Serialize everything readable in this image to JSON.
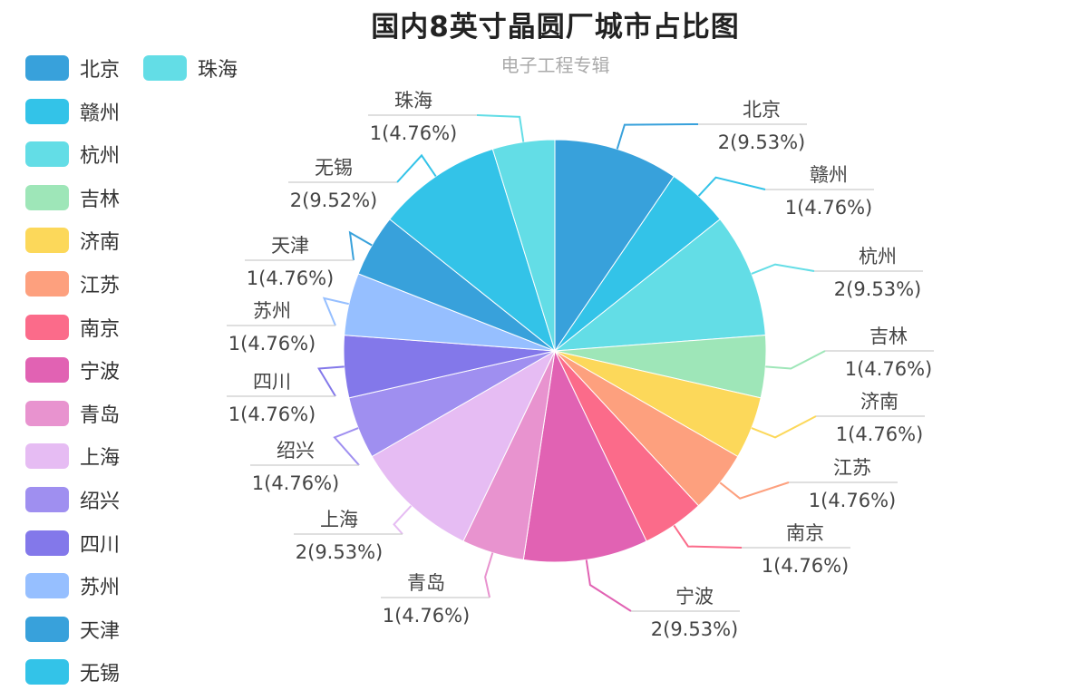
{
  "chart_data": {
    "type": "pie",
    "title": "国内8英寸晶圆厂城市占比图",
    "subtitle": "电子工程专辑",
    "legend_position": "left",
    "slices": [
      {
        "name": "北京",
        "value": 2,
        "label": "2(9.53%)",
        "color": "#38a1db"
      },
      {
        "name": "赣州",
        "value": 1,
        "label": "1(4.76%)",
        "color": "#33c3e8"
      },
      {
        "name": "杭州",
        "value": 2,
        "label": "2(9.53%)",
        "color": "#63dde6"
      },
      {
        "name": "吉林",
        "value": 1,
        "label": "1(4.76%)",
        "color": "#9ee6b8"
      },
      {
        "name": "济南",
        "value": 1,
        "label": "1(4.76%)",
        "color": "#fcd85a"
      },
      {
        "name": "江苏",
        "value": 1,
        "label": "1(4.76%)",
        "color": "#fda07e"
      },
      {
        "name": "南京",
        "value": 1,
        "label": "1(4.76%)",
        "color": "#fb6b8a"
      },
      {
        "name": "宁波",
        "value": 2,
        "label": "2(9.53%)",
        "color": "#e162b3"
      },
      {
        "name": "青岛",
        "value": 1,
        "label": "1(4.76%)",
        "color": "#e893cf"
      },
      {
        "name": "上海",
        "value": 2,
        "label": "2(9.53%)",
        "color": "#e6bcf3"
      },
      {
        "name": "绍兴",
        "value": 1,
        "label": "1(4.76%)",
        "color": "#9f8ff0"
      },
      {
        "name": "四川",
        "value": 1,
        "label": "1(4.76%)",
        "color": "#8378ea"
      },
      {
        "name": "苏州",
        "value": 1,
        "label": "1(4.76%)",
        "color": "#96bfff"
      },
      {
        "name": "天津",
        "value": 1,
        "label": "1(4.76%)",
        "color": "#38a1db"
      },
      {
        "name": "无锡",
        "value": 2,
        "label": "2(9.52%)",
        "color": "#33c3e8"
      },
      {
        "name": "珠海",
        "value": 1,
        "label": "1(4.76%)",
        "color": "#63dde6"
      }
    ]
  }
}
